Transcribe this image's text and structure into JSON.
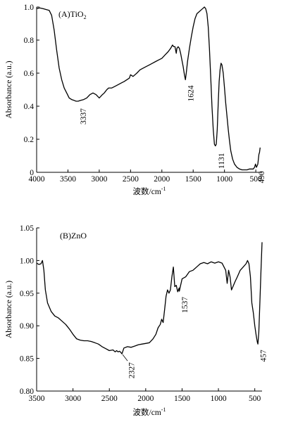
{
  "chart_data": [
    {
      "type": "line",
      "panel_label": "(A)TiO",
      "panel_label_sub": "2",
      "ylabel": "Absorbance (a.u.)",
      "xlabel": "波数/cm",
      "xlabel_sup": "-1",
      "xlim": [
        4000,
        400
      ],
      "ylim": [
        0,
        1.0
      ],
      "x_ticks": [
        4000,
        3500,
        3000,
        2500,
        2000,
        1500,
        1000,
        500
      ],
      "y_ticks": [
        0,
        0.2,
        0.4,
        0.6,
        0.8,
        1.0
      ],
      "y_tick_labels": [
        "0",
        "0.2",
        "0.4",
        "0.6",
        "0.8",
        "1.0"
      ],
      "grid": false,
      "series": [
        {
          "x": [
            4000,
            3950,
            3900,
            3850,
            3800,
            3760,
            3720,
            3680,
            3640,
            3600,
            3560,
            3520,
            3480,
            3440,
            3400,
            3370,
            3337,
            3300,
            3250,
            3200,
            3150,
            3100,
            3050,
            3000,
            2950,
            2920,
            2880,
            2850,
            2800,
            2750,
            2700,
            2650,
            2600,
            2560,
            2520,
            2500,
            2460,
            2400,
            2350,
            2300,
            2250,
            2200,
            2150,
            2100,
            2050,
            2000,
            1950,
            1900,
            1860,
            1830,
            1810,
            1790,
            1770,
            1760,
            1740,
            1720,
            1700,
            1680,
            1660,
            1640,
            1624,
            1610,
            1590,
            1560,
            1530,
            1500,
            1470,
            1440,
            1410,
            1380,
            1350,
            1320,
            1300,
            1280,
            1260,
            1240,
            1220,
            1200,
            1180,
            1160,
            1145,
            1131,
            1115,
            1100,
            1085,
            1070,
            1055,
            1040,
            1020,
            1000,
            980,
            960,
            940,
            920,
            900,
            870,
            840,
            800,
            760,
            720,
            680,
            640,
            600,
            570,
            540,
            520,
            505,
            490,
            478,
            468,
            458,
            450,
            440,
            430
          ],
          "y": [
            0.99,
            0.995,
            0.99,
            0.985,
            0.98,
            0.95,
            0.86,
            0.74,
            0.63,
            0.56,
            0.51,
            0.48,
            0.45,
            0.44,
            0.435,
            0.43,
            0.43,
            0.435,
            0.44,
            0.45,
            0.47,
            0.48,
            0.47,
            0.45,
            0.47,
            0.48,
            0.5,
            0.51,
            0.51,
            0.52,
            0.53,
            0.54,
            0.55,
            0.56,
            0.57,
            0.59,
            0.58,
            0.6,
            0.62,
            0.63,
            0.64,
            0.65,
            0.66,
            0.67,
            0.68,
            0.69,
            0.71,
            0.73,
            0.75,
            0.77,
            0.76,
            0.76,
            0.72,
            0.75,
            0.76,
            0.75,
            0.72,
            0.68,
            0.64,
            0.59,
            0.56,
            0.6,
            0.67,
            0.75,
            0.82,
            0.88,
            0.93,
            0.96,
            0.97,
            0.98,
            0.99,
            1.0,
            0.99,
            0.96,
            0.88,
            0.75,
            0.58,
            0.4,
            0.26,
            0.17,
            0.16,
            0.17,
            0.26,
            0.42,
            0.55,
            0.62,
            0.66,
            0.65,
            0.6,
            0.51,
            0.42,
            0.34,
            0.26,
            0.19,
            0.13,
            0.08,
            0.05,
            0.03,
            0.02,
            0.015,
            0.015,
            0.015,
            0.02,
            0.02,
            0.02,
            0.03,
            0.05,
            0.03,
            0.04,
            0.05,
            0.08,
            0.11,
            0.12,
            0.15
          ]
        }
      ],
      "annotations": [
        "3337",
        "1624",
        "1131",
        "490"
      ]
    },
    {
      "type": "line",
      "panel_label": "(B)ZnO",
      "ylabel": "Absorbance (a.u.)",
      "xlabel": "波数/cm",
      "xlabel_sup": "-1",
      "xlim": [
        3500,
        400
      ],
      "ylim": [
        0.8,
        1.05
      ],
      "x_ticks": [
        3500,
        3000,
        2500,
        2000,
        1500,
        1000,
        500
      ],
      "y_ticks": [
        0.8,
        0.85,
        0.9,
        0.95,
        1.0,
        1.05
      ],
      "y_tick_labels": [
        "0.80",
        "0.85",
        "0.90",
        "0.95",
        "1.00",
        "1.05"
      ],
      "grid": false,
      "series": [
        {
          "x": [
            3500,
            3470,
            3440,
            3420,
            3400,
            3380,
            3350,
            3300,
            3250,
            3200,
            3150,
            3100,
            3050,
            3000,
            2950,
            2900,
            2850,
            2800,
            2750,
            2700,
            2650,
            2600,
            2550,
            2500,
            2450,
            2420,
            2400,
            2380,
            2360,
            2340,
            2327,
            2300,
            2250,
            2200,
            2150,
            2100,
            2050,
            2000,
            1950,
            1900,
            1860,
            1830,
            1800,
            1780,
            1760,
            1740,
            1720,
            1700,
            1680,
            1660,
            1640,
            1620,
            1600,
            1580,
            1560,
            1540,
            1537,
            1520,
            1500,
            1450,
            1400,
            1350,
            1300,
            1250,
            1200,
            1150,
            1100,
            1050,
            1000,
            950,
            900,
            880,
            860,
            840,
            820,
            800,
            770,
            740,
            700,
            660,
            620,
            600,
            580,
            560,
            540,
            520,
            500,
            480,
            465,
            457,
            445,
            430,
            415,
            400
          ],
          "y": [
            0.996,
            0.994,
            0.995,
            1.0,
            0.985,
            0.955,
            0.935,
            0.922,
            0.915,
            0.912,
            0.907,
            0.902,
            0.895,
            0.887,
            0.88,
            0.878,
            0.877,
            0.877,
            0.876,
            0.874,
            0.872,
            0.868,
            0.865,
            0.862,
            0.863,
            0.86,
            0.862,
            0.86,
            0.861,
            0.859,
            0.857,
            0.866,
            0.868,
            0.867,
            0.869,
            0.871,
            0.872,
            0.873,
            0.874,
            0.88,
            0.887,
            0.897,
            0.902,
            0.91,
            0.905,
            0.925,
            0.945,
            0.955,
            0.95,
            0.955,
            0.975,
            0.99,
            0.96,
            0.962,
            0.952,
            0.958,
            0.953,
            0.962,
            0.972,
            0.975,
            0.983,
            0.985,
            0.99,
            0.995,
            0.997,
            0.995,
            0.998,
            0.996,
            0.998,
            0.996,
            0.985,
            0.965,
            0.985,
            0.975,
            0.955,
            0.96,
            0.968,
            0.975,
            0.985,
            0.99,
            0.995,
            1.0,
            0.995,
            0.975,
            0.935,
            0.92,
            0.9,
            0.885,
            0.875,
            0.872,
            0.89,
            0.935,
            0.985,
            1.028
          ]
        }
      ],
      "annotations": [
        "2327",
        "1537",
        "457"
      ]
    }
  ]
}
